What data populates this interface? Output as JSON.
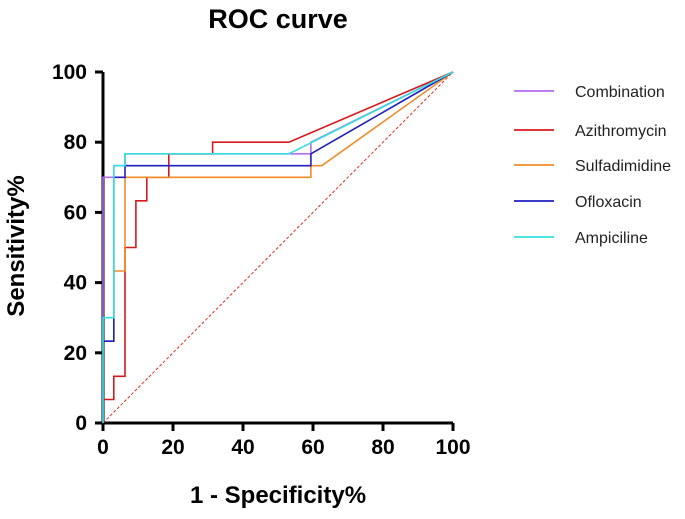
{
  "chart_data": {
    "type": "line",
    "title": "ROC curve",
    "xlabel": "1 - Specificity%",
    "ylabel": "Sensitivity%",
    "xlim": [
      0,
      100
    ],
    "ylim": [
      0,
      100
    ],
    "xticks": [
      0,
      20,
      40,
      60,
      80,
      100
    ],
    "yticks": [
      0,
      20,
      40,
      60,
      80,
      100
    ],
    "grid": false,
    "legend_position": "right",
    "reference_line": {
      "points": [
        [
          0,
          0
        ],
        [
          100,
          100
        ]
      ],
      "color": "#e0301e",
      "style": "dashed"
    },
    "series": [
      {
        "name": "Combination",
        "color": "#b56cf0",
        "points": [
          [
            0,
            0
          ],
          [
            0,
            70
          ],
          [
            3.1,
            70
          ],
          [
            3.1,
            73.3
          ],
          [
            6.3,
            73.3
          ],
          [
            6.3,
            76.7
          ],
          [
            59.4,
            76.7
          ],
          [
            59.4,
            80
          ],
          [
            100,
            100
          ]
        ]
      },
      {
        "name": "Azithromycin",
        "color": "#d7191c",
        "points": [
          [
            0,
            0
          ],
          [
            0,
            6.7
          ],
          [
            3.1,
            6.7
          ],
          [
            3.1,
            13.3
          ],
          [
            6.3,
            13.3
          ],
          [
            6.3,
            50
          ],
          [
            9.4,
            50
          ],
          [
            9.4,
            63.3
          ],
          [
            12.5,
            63.3
          ],
          [
            12.5,
            70
          ],
          [
            18.8,
            70
          ],
          [
            18.8,
            76.7
          ],
          [
            31.3,
            76.7
          ],
          [
            31.3,
            80
          ],
          [
            53.1,
            80
          ],
          [
            100,
            100
          ]
        ]
      },
      {
        "name": "Sulfadimidine",
        "color": "#f08c28",
        "points": [
          [
            0,
            0
          ],
          [
            0,
            23.3
          ],
          [
            3.1,
            23.3
          ],
          [
            3.1,
            43.3
          ],
          [
            6.3,
            43.3
          ],
          [
            6.3,
            70
          ],
          [
            59.4,
            70
          ],
          [
            59.4,
            73.3
          ],
          [
            62.5,
            73.3
          ],
          [
            100,
            100
          ]
        ]
      },
      {
        "name": "Ofloxacin",
        "color": "#1f1fbf",
        "points": [
          [
            0,
            0
          ],
          [
            0,
            23.3
          ],
          [
            3.1,
            23.3
          ],
          [
            3.1,
            70
          ],
          [
            6.3,
            70
          ],
          [
            6.3,
            73.3
          ],
          [
            59.4,
            73.3
          ],
          [
            59.4,
            76.7
          ],
          [
            100,
            100
          ]
        ]
      },
      {
        "name": "Ampiciline",
        "color": "#33e0e0",
        "points": [
          [
            0,
            0
          ],
          [
            0,
            30
          ],
          [
            3.1,
            30
          ],
          [
            3.1,
            73.3
          ],
          [
            6.3,
            73.3
          ],
          [
            6.3,
            76.7
          ],
          [
            50,
            76.7
          ],
          [
            53.1,
            76.7
          ],
          [
            100,
            100
          ]
        ]
      }
    ]
  }
}
